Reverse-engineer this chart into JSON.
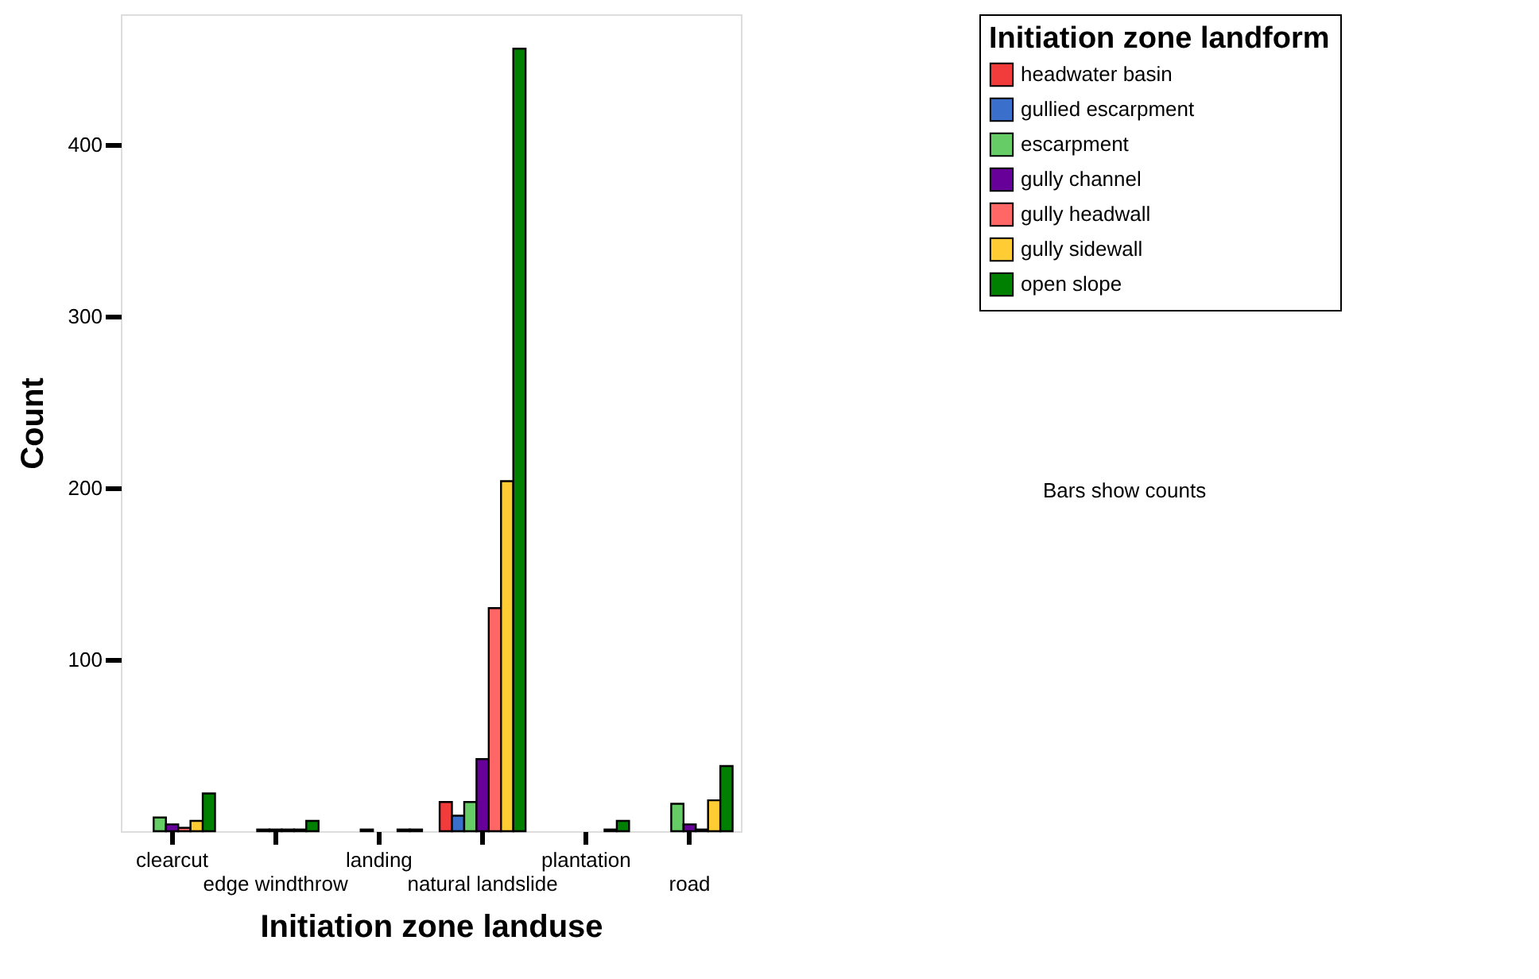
{
  "chart_data": {
    "type": "bar",
    "xlabel": "Initiation zone landuse",
    "ylabel": "Count",
    "legend_title": "Initiation zone landform",
    "categories": [
      "clearcut",
      "edge windthrow",
      "landing",
      "natural landslide",
      "plantation",
      "road"
    ],
    "series": [
      {
        "name": "headwater basin",
        "color": "#f23b3b",
        "values": [
          null,
          null,
          null,
          17,
          null,
          null
        ]
      },
      {
        "name": "gullied escarpment",
        "color": "#3a6fcc",
        "values": [
          null,
          null,
          null,
          9,
          null,
          null
        ]
      },
      {
        "name": "escarpment",
        "color": "#66cc66",
        "values": [
          8,
          1,
          1,
          17,
          null,
          16
        ]
      },
      {
        "name": "gully channel",
        "color": "#660099",
        "values": [
          4,
          1,
          null,
          42,
          null,
          4
        ]
      },
      {
        "name": "gully headwall",
        "color": "#ff6666",
        "values": [
          2,
          1,
          null,
          130,
          null,
          1
        ]
      },
      {
        "name": "gully sidewall",
        "color": "#ffcc33",
        "values": [
          6,
          1,
          1,
          204,
          1,
          18
        ]
      },
      {
        "name": "open slope",
        "color": "#008000",
        "values": [
          22,
          6,
          1,
          456,
          6,
          38
        ]
      }
    ],
    "ylim": [
      0,
      476
    ],
    "yticks": [
      100,
      200,
      300,
      400
    ],
    "grid": false,
    "legend": "top right",
    "annotations": [
      "Bars show counts"
    ]
  }
}
